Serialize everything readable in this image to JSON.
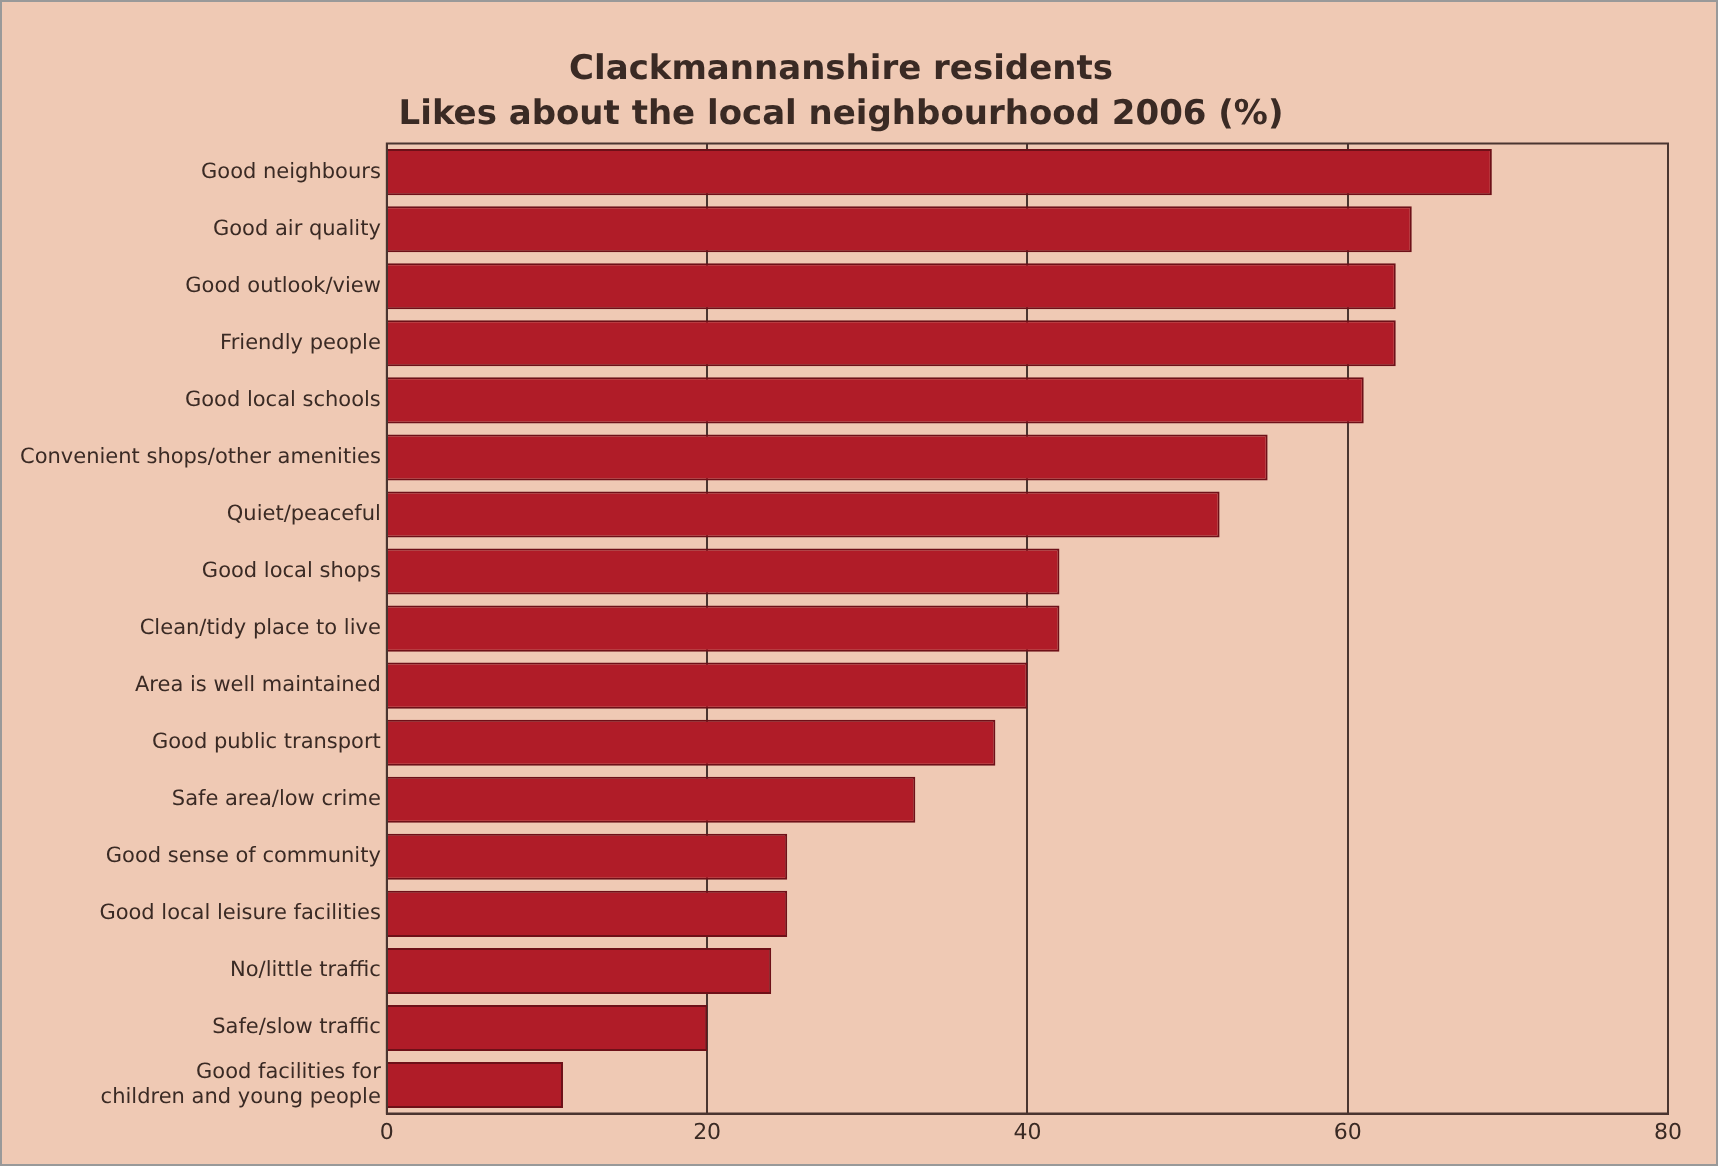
{
  "chart_data": {
    "type": "bar",
    "orientation": "horizontal",
    "title": "Clackmannanshire residents",
    "subtitle": "Likes about the local neighbourhood 2006 (%)",
    "categories": [
      "Good neighbours",
      "Good air quality",
      "Good outlook/view",
      "Friendly people",
      "Good local schools",
      "Convenient shops/other amenities",
      "Quiet/peaceful",
      "Good local shops",
      "Clean/tidy place to live",
      "Area is well maintained",
      "Good public transport",
      "Safe area/low crime",
      "Good sense of community",
      "Good local leisure facilities",
      "No/little traffic",
      "Safe/slow traffic",
      "Good facilities for children and young people"
    ],
    "values": [
      69,
      64,
      63,
      63,
      61,
      55,
      52,
      42,
      42,
      40,
      38,
      33,
      25,
      25,
      24,
      20,
      11
    ],
    "color": "#b01c28",
    "xlim": [
      0,
      80
    ],
    "xticks": [
      0,
      20,
      40,
      60,
      80
    ],
    "grid": "x",
    "legend": false
  }
}
